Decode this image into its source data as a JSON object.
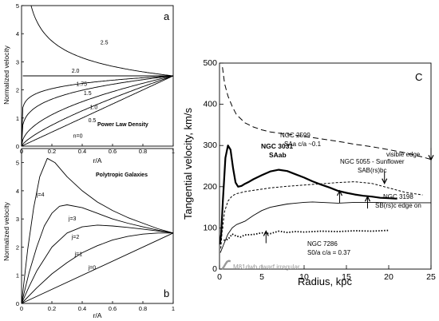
{
  "chart_data": [
    {
      "panel": "a",
      "type": "line",
      "title": "Power Law Density",
      "xlabel": "r/A",
      "ylabel": "Normalized velocity",
      "xlim": [
        0,
        1
      ],
      "ylim": [
        0,
        5
      ],
      "x_ticks": [
        "0",
        "0.2",
        "0.4",
        "0.6",
        "0.8",
        "1"
      ],
      "y_ticks": [
        "0",
        "1",
        "2",
        "3",
        "4",
        "5"
      ],
      "series_note": "v(x) = 2.5 * x^(1 - n/2), curves labeled by n",
      "series": [
        {
          "label": "2.5",
          "n": 2.5
        },
        {
          "label": "2.0",
          "n": 2.0
        },
        {
          "label": "1.75",
          "n": 1.75
        },
        {
          "label": "1.5",
          "n": 1.5
        },
        {
          "label": "1.0",
          "n": 1.0
        },
        {
          "label": "0.5",
          "n": 0.5
        },
        {
          "label": "n=0",
          "n": 0
        }
      ]
    },
    {
      "panel": "b",
      "type": "line",
      "title": "Polytropic Galaxies",
      "xlabel": "r/A",
      "ylabel": "Normalized velocity",
      "xlim": [
        0,
        1
      ],
      "ylim": [
        0,
        5.5
      ],
      "x_ticks": [
        "0",
        "0.2",
        "0.4",
        "0.6",
        "0.8",
        "1"
      ],
      "y_ticks": [
        "0",
        "1",
        "2",
        "3",
        "4",
        "5"
      ],
      "series": [
        {
          "label": "j=4",
          "x": [
            0,
            0.04,
            0.08,
            0.12,
            0.17,
            0.22,
            0.3,
            0.4,
            0.5,
            0.6,
            0.7,
            0.8,
            0.9,
            1.0
          ],
          "y": [
            0,
            1.9,
            3.4,
            4.5,
            5.15,
            5.0,
            4.5,
            4.0,
            3.6,
            3.3,
            3.05,
            2.85,
            2.65,
            2.5
          ]
        },
        {
          "label": "j=3",
          "x": [
            0,
            0.05,
            0.1,
            0.15,
            0.2,
            0.25,
            0.3,
            0.4,
            0.5,
            0.6,
            0.7,
            0.8,
            0.9,
            1.0
          ],
          "y": [
            0,
            1.1,
            2.0,
            2.75,
            3.2,
            3.45,
            3.5,
            3.4,
            3.2,
            3.0,
            2.85,
            2.72,
            2.6,
            2.5
          ]
        },
        {
          "label": "j=2",
          "x": [
            0,
            0.05,
            0.1,
            0.2,
            0.3,
            0.4,
            0.5,
            0.6,
            0.7,
            0.8,
            0.9,
            1.0
          ],
          "y": [
            0,
            0.6,
            1.15,
            2.0,
            2.5,
            2.72,
            2.78,
            2.75,
            2.7,
            2.64,
            2.57,
            2.5
          ]
        },
        {
          "label": "j=1",
          "x": [
            0,
            0.1,
            0.2,
            0.3,
            0.4,
            0.5,
            0.6,
            0.7,
            0.8,
            0.9,
            1.0
          ],
          "y": [
            0,
            0.55,
            1.05,
            1.45,
            1.8,
            2.05,
            2.25,
            2.38,
            2.46,
            2.5,
            2.5
          ]
        },
        {
          "label": "j=0",
          "x": [
            0,
            1
          ],
          "y": [
            0,
            2.5
          ]
        }
      ]
    },
    {
      "panel": "c",
      "type": "line",
      "xlabel": "Radius, kpc",
      "ylabel": "Tangential velocity, km/s",
      "xlim": [
        0,
        25
      ],
      "ylim": [
        0,
        500
      ],
      "x_ticks": [
        "0",
        "5",
        "10",
        "15",
        "20",
        "25"
      ],
      "y_ticks": [
        "0",
        "100",
        "200",
        "300",
        "400",
        "500"
      ],
      "series": [
        {
          "name": "NGC 2599",
          "style": "dashed",
          "x": [
            0.35,
            0.6,
            1,
            1.5,
            2,
            3,
            4,
            5,
            6,
            7,
            8,
            10,
            12,
            14,
            16,
            18,
            20,
            22,
            24,
            25
          ],
          "y": [
            490,
            450,
            420,
            395,
            375,
            355,
            345,
            338,
            333,
            330,
            328,
            322,
            316,
            310,
            303,
            297,
            290,
            282,
            272,
            266
          ]
        },
        {
          "name": "NGC 3031",
          "style": "thick",
          "x": [
            0.05,
            0.2,
            0.4,
            0.7,
            1.0,
            1.3,
            1.6,
            1.9,
            2.2,
            2.6,
            3.0,
            3.5,
            4,
            5,
            6,
            7,
            8,
            9,
            10,
            11,
            12,
            13,
            14,
            15,
            16,
            17,
            18,
            19,
            20,
            21
          ],
          "y": [
            60,
            85,
            165,
            270,
            300,
            290,
            245,
            210,
            200,
            202,
            207,
            212,
            218,
            228,
            237,
            241,
            238,
            230,
            222,
            213,
            205,
            198,
            190,
            185,
            181,
            178,
            176,
            173,
            172,
            171
          ]
        },
        {
          "name": "NGC 5055",
          "style": "short-dashed",
          "x": [
            0.15,
            0.3,
            0.6,
            1,
            1.5,
            2,
            3,
            4,
            5,
            6,
            8,
            10,
            12,
            14,
            16,
            18,
            20,
            22,
            24
          ],
          "y": [
            50,
            90,
            140,
            165,
            178,
            183,
            188,
            191,
            194,
            197,
            201,
            204,
            207,
            210,
            212,
            208,
            197,
            186,
            180
          ]
        },
        {
          "name": "NGC 3198",
          "style": "thin",
          "x": [
            0.1,
            0.5,
            1,
            1.5,
            2,
            2.5,
            3,
            3.5,
            4,
            5,
            6,
            7,
            8,
            9,
            10,
            11,
            12,
            13,
            14,
            15,
            16,
            18,
            20,
            22,
            24,
            25
          ],
          "y": [
            40,
            60,
            85,
            100,
            108,
            112,
            116,
            123,
            130,
            142,
            150,
            154,
            158,
            160,
            162,
            163,
            162,
            161,
            160,
            161,
            162,
            162,
            161,
            161,
            161,
            161
          ]
        },
        {
          "name": "NGC 7286",
          "style": "dotted",
          "x": [
            0.5,
            1,
            1.5,
            2,
            2.5,
            3,
            4,
            5,
            6,
            7,
            8,
            9,
            10,
            12,
            14,
            16,
            18,
            20
          ],
          "y": [
            70,
            72,
            85,
            80,
            78,
            83,
            84,
            88,
            86,
            92,
            89,
            91,
            90,
            92,
            91,
            93,
            92,
            94
          ]
        },
        {
          "name": "M81dwb",
          "style": "gray",
          "x": [
            0.3,
            0.5,
            0.7,
            0.9,
            1.1,
            1.3
          ],
          "y": [
            0,
            5,
            12,
            18,
            20,
            19
          ]
        }
      ],
      "labels": {
        "ngc2599_name": "NGC 2599",
        "ngc2599_type": "SAa  c/a ~0.1",
        "visible_edge": "visible edge",
        "ngc3031_name": "NGC 3031",
        "ngc3031_type": "SAab",
        "ngc5055_name": "NGC 5055 - Sunflower",
        "ngc5055_type": "SAB(rs)bc",
        "ngc3198_name": "NGC 3198",
        "ngc3198_type": "SB(rs)c edge on",
        "ngc7286_name": "NGC 7286",
        "ngc7286_type": "S0/a   c/a = 0.37",
        "m81dwb": "M81dwb  dwarf irregular"
      },
      "edge_arrows": [
        {
          "x": 25,
          "y": 265,
          "direction": "down"
        },
        {
          "x": 14.2,
          "y": 190,
          "direction": "up"
        },
        {
          "x": 17.5,
          "y": 176,
          "direction": "up"
        },
        {
          "x": 19.5,
          "y": 208,
          "direction": "down"
        },
        {
          "x": 5.5,
          "y": 92,
          "direction": "up"
        }
      ],
      "colors": {
        "m81dwb": "#999999"
      }
    }
  ]
}
